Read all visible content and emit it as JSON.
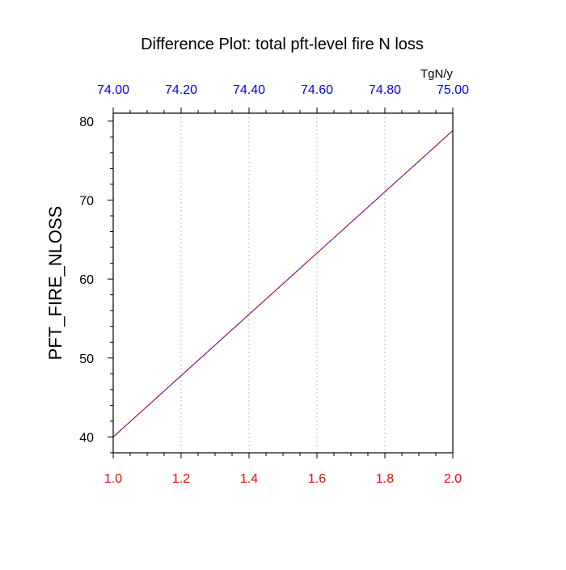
{
  "chart_data": {
    "type": "line",
    "title": "Difference Plot: total pft-level fire N loss",
    "ylabel": "PFT_FIRE_NLOSS",
    "xlabel": "",
    "top_axis_unit": "TgN/y",
    "xlim": [
      1.0,
      2.0
    ],
    "ylim": [
      38,
      81
    ],
    "top_xlim": [
      74.0,
      75.0
    ],
    "x_ticks": [
      "1.0",
      "1.2",
      "1.4",
      "1.6",
      "1.8",
      "2.0"
    ],
    "x_tick_values": [
      1.0,
      1.2,
      1.4,
      1.6,
      1.8,
      2.0
    ],
    "top_x_ticks": [
      "74.00",
      "74.20",
      "74.40",
      "74.60",
      "74.80",
      "75.00"
    ],
    "top_x_tick_values": [
      74.0,
      74.2,
      74.4,
      74.6,
      74.8,
      75.0
    ],
    "y_ticks": [
      "40",
      "50",
      "60",
      "70",
      "80"
    ],
    "y_tick_values": [
      40,
      50,
      60,
      70,
      80
    ],
    "grid": "vertical dotted",
    "series": [
      {
        "x": [
          1.0,
          2.0
        ],
        "values": [
          40.0,
          78.8
        ],
        "color": "#0000ff",
        "style": "solid"
      },
      {
        "x": [
          1.0,
          2.0
        ],
        "values": [
          40.0,
          78.8
        ],
        "color": "#ff0000",
        "style": "dashed"
      }
    ],
    "colors": {
      "bottom_ticks": "#ff0000",
      "top_ticks": "#0000ff",
      "axis": "#000000",
      "grid": "#c8c8c8"
    }
  }
}
